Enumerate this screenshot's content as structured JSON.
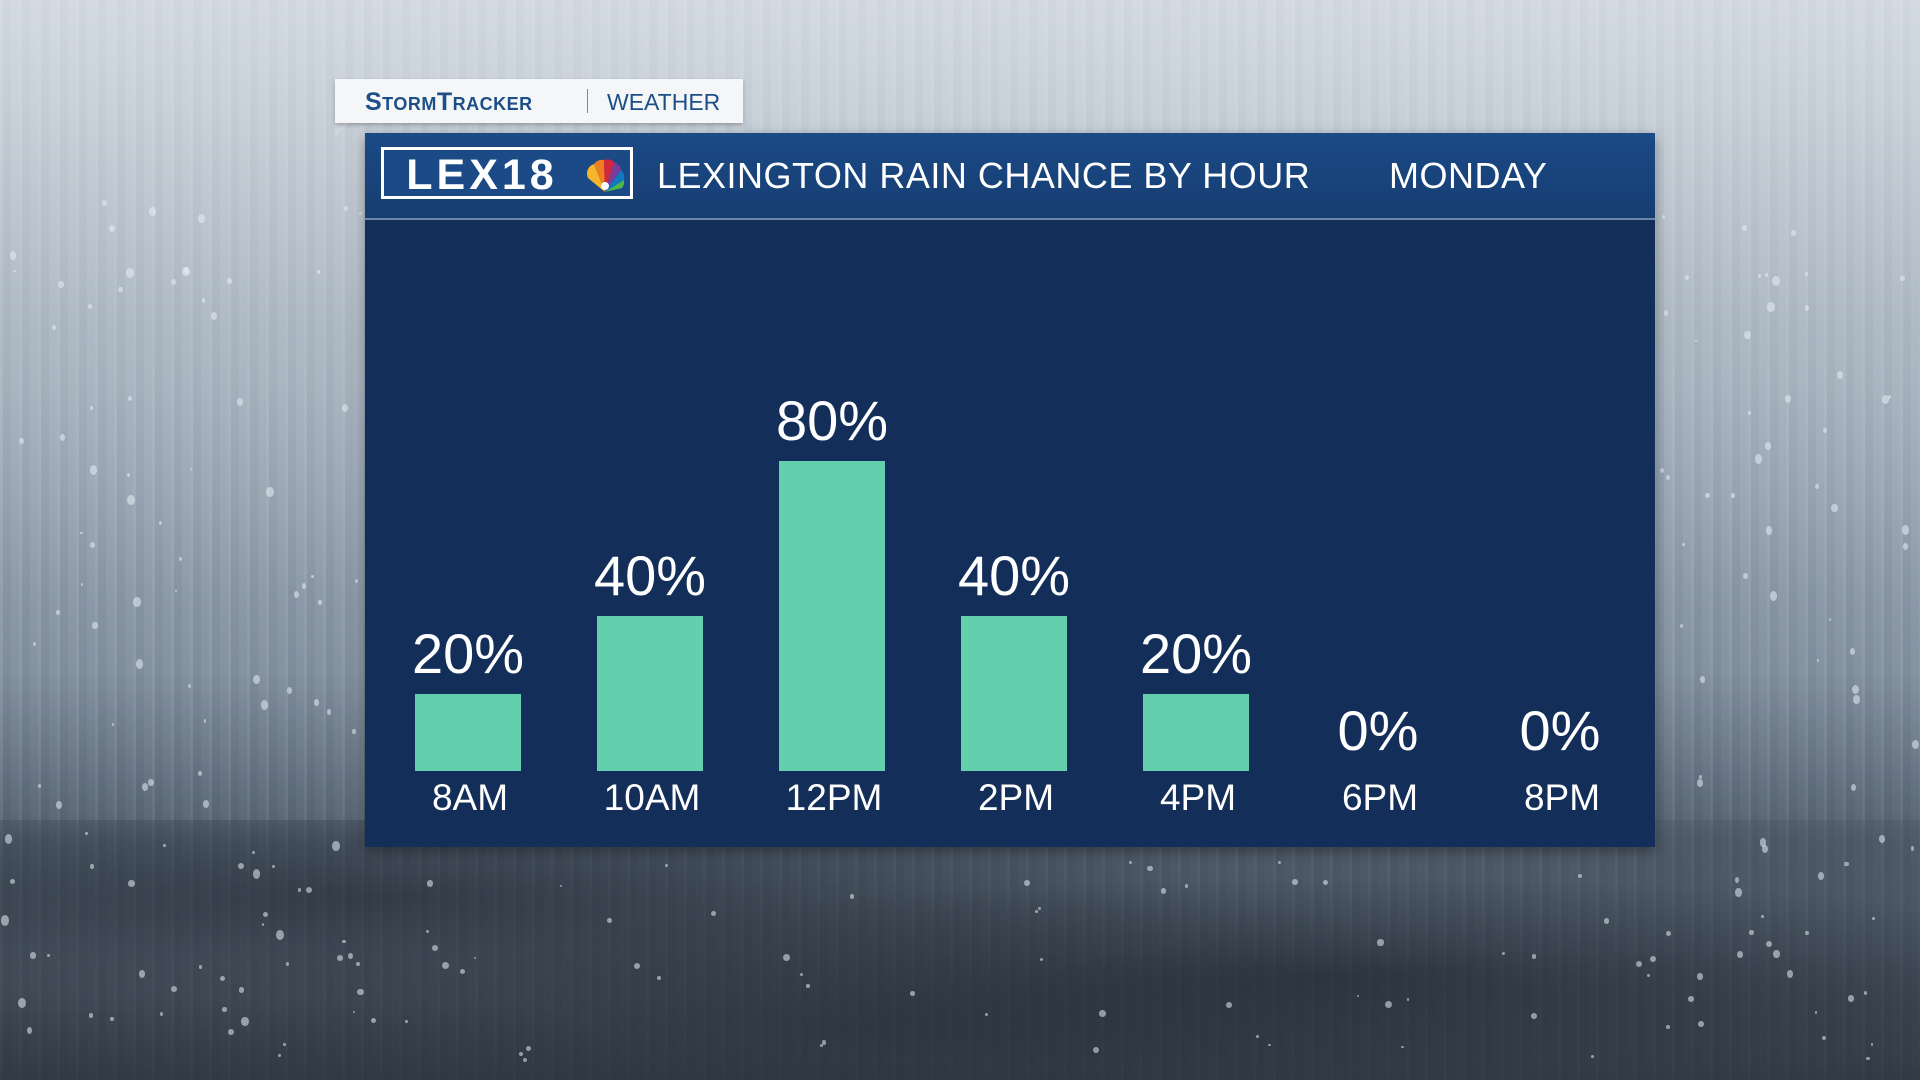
{
  "brand": {
    "tag_name": "StormTracker",
    "tag_section": "WEATHER",
    "logo_text": "LEX18",
    "logo_icon": "peacock-icon"
  },
  "header": {
    "title": "LEXINGTON RAIN CHANCE BY HOUR",
    "day": "MONDAY"
  },
  "colors": {
    "panel": "#122e59",
    "header": "#1b4a86",
    "bar": "#64cfad",
    "brand_text": "#1d4f86"
  },
  "chart_data": {
    "type": "bar",
    "title": "LEXINGTON RAIN CHANCE BY HOUR",
    "subtitle": "MONDAY",
    "categories": [
      "8AM",
      "10AM",
      "12PM",
      "2PM",
      "4PM",
      "6PM",
      "8PM"
    ],
    "values": [
      20,
      40,
      80,
      40,
      20,
      0,
      0
    ],
    "value_labels": [
      "20%",
      "40%",
      "80%",
      "40%",
      "20%",
      "0%",
      "0%"
    ],
    "unit": "%",
    "ylim": [
      0,
      100
    ],
    "grid": false,
    "legend": "none"
  }
}
